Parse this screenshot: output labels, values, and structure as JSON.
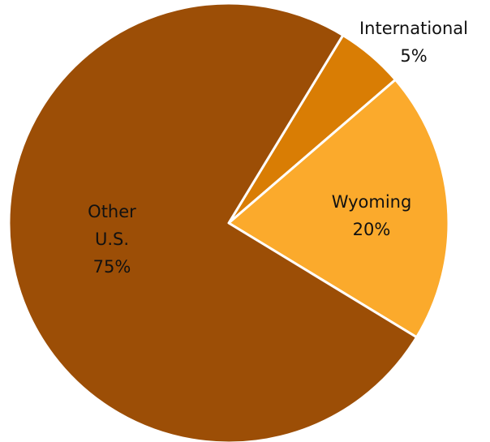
{
  "chart_data": {
    "type": "pie",
    "categories": [
      "International",
      "Wyoming",
      "Other U.S."
    ],
    "values": [
      5,
      20,
      75
    ],
    "value_labels": [
      "5%",
      "20%",
      "75%"
    ],
    "colors": [
      "#d97d04",
      "#fbaa2c",
      "#9c4e06"
    ]
  }
}
